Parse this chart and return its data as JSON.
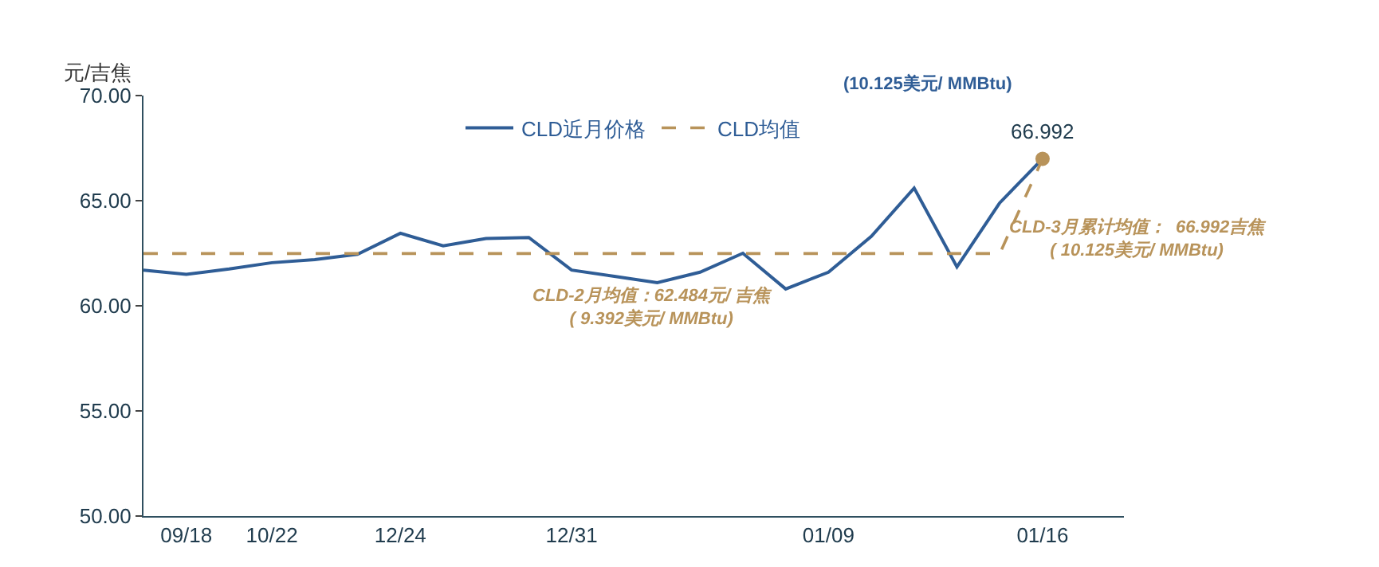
{
  "chart_data": {
    "type": "line",
    "ylabel": "元/吉焦",
    "categories": [
      null,
      "09/18",
      null,
      "10/22",
      null,
      null,
      "12/24",
      null,
      null,
      null,
      "12/31",
      null,
      null,
      null,
      null,
      null,
      "01/09",
      null,
      null,
      null,
      null,
      "01/16"
    ],
    "series": [
      {
        "name": "CLD近月价格",
        "color": "#2f5d96",
        "line_style": "solid",
        "values": [
          61.7,
          61.5,
          61.75,
          62.05,
          62.2,
          62.45,
          63.45,
          62.85,
          63.2,
          63.25,
          61.7,
          61.4,
          61.1,
          61.6,
          62.5,
          60.8,
          61.6,
          63.3,
          65.6,
          61.85,
          64.9,
          66.992
        ]
      },
      {
        "name": "CLD均值",
        "color": "#b8935a",
        "line_style": "dashed",
        "values": [
          62.484,
          62.484,
          62.484,
          62.484,
          62.484,
          62.484,
          62.484,
          62.484,
          62.484,
          62.484,
          62.484,
          62.484,
          62.484,
          62.484,
          62.484,
          62.484,
          62.484,
          62.484,
          62.484,
          62.484,
          62.484,
          66.992
        ]
      },
      {
        "type": "scatter",
        "color": "#b8935a",
        "marker": "circle",
        "x": [
          "01/16"
        ],
        "values": [
          66.992
        ]
      }
    ],
    "ylim": [
      50,
      70
    ],
    "yticks": [
      {
        "value": 50,
        "label": "50.00"
      },
      {
        "value": 55,
        "label": "55.00"
      },
      {
        "value": 60,
        "label": "60.00"
      },
      {
        "value": 65,
        "label": "65.00"
      },
      {
        "value": 70,
        "label": "70.00"
      }
    ],
    "legend": "top",
    "marker": "none",
    "annotations": [
      {
        "text": "66.992",
        "x": "01/16",
        "y": 66.992
      },
      "(10.125美元/ MMBtu)",
      "CLD-2月均值：62.484元/ 吉焦\n( 9.392美元/ MMBtu)",
      "CLD-3月累计均值：  66.992吉焦\n( 10.125美元/ MMBtu)"
    ]
  }
}
